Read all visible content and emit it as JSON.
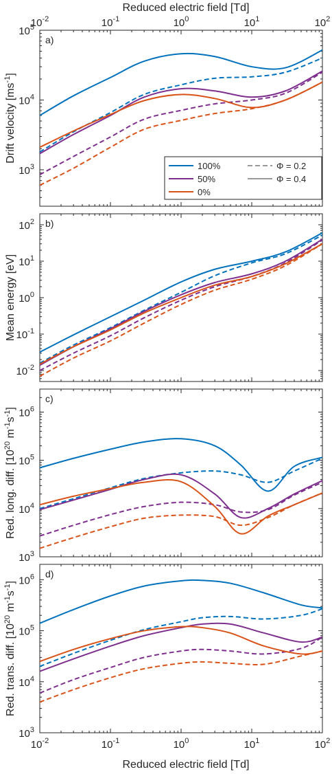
{
  "figure": {
    "top_xlabel": "Reduced electric field [Td]",
    "bottom_xlabel": "Reduced electric field [Td]"
  },
  "legend": {
    "placement": "panel a, lower-right",
    "entries": [
      {
        "label": "100%",
        "color": "#0072BD",
        "style": "solid"
      },
      {
        "label": "50%",
        "color": "#7E2F8E",
        "style": "solid"
      },
      {
        "label": "0%",
        "color": "#D95319",
        "style": "solid"
      },
      {
        "label": "Φ = 0.2",
        "color": "#999999",
        "style": "dashed"
      },
      {
        "label": "Φ = 0.4",
        "color": "#999999",
        "style": "solid"
      }
    ]
  },
  "chart_data": [
    {
      "type": "line",
      "panel": "a)",
      "title": "",
      "xlabel": "Reduced electric field [Td]",
      "ylabel": "Drift velocity [ms-1]",
      "xscale": "log",
      "yscale": "log",
      "xlim": [
        0.01,
        100
      ],
      "ylim": [
        300,
        100000
      ],
      "xticks": [
        "10^-2",
        "10^-1",
        "10^0",
        "10^1",
        "10^2"
      ],
      "yticks": [
        "10^3",
        "10^4",
        "10^5"
      ],
      "x": [
        0.01,
        0.03,
        0.1,
        0.3,
        1,
        3,
        10,
        30,
        100
      ],
      "series": [
        {
          "name": "100%",
          "phi": "0.4",
          "values": [
            6000,
            11500,
            21000,
            36000,
            46000,
            42000,
            30000,
            29000,
            52000
          ]
        },
        {
          "name": "100%",
          "phi": "0.2",
          "values": [
            1800,
            3500,
            6600,
            12000,
            16500,
            20500,
            21500,
            25000,
            40000
          ]
        },
        {
          "name": "50%",
          "phi": "0.4",
          "values": [
            1700,
            3200,
            6000,
            11000,
            14500,
            13500,
            11000,
            13500,
            26000
          ]
        },
        {
          "name": "50%",
          "phi": "0.2",
          "values": [
            850,
            1550,
            2950,
            5300,
            7100,
            8800,
            10000,
            12500,
            25000
          ]
        },
        {
          "name": "0%",
          "phi": "0.4",
          "values": [
            2100,
            3600,
            6200,
            9800,
            12000,
            10500,
            7800,
            10000,
            18000
          ]
        },
        {
          "name": "0%",
          "phi": "0.2",
          "values": [
            600,
            1050,
            2100,
            3800,
            5100,
            6400,
            7500,
            10000,
            18000
          ]
        }
      ]
    },
    {
      "type": "line",
      "panel": "b)",
      "title": "",
      "xlabel": "",
      "ylabel": "Mean energy [eV]",
      "xscale": "log",
      "yscale": "log",
      "xlim": [
        0.01,
        100
      ],
      "ylim": [
        0.005,
        200
      ],
      "xticks": [
        "10^-2",
        "10^-1",
        "10^0",
        "10^1",
        "10^2"
      ],
      "yticks": [
        "10^-2",
        "10^-1",
        "10^0",
        "10^1",
        "10^2"
      ],
      "x": [
        0.01,
        0.03,
        0.1,
        0.3,
        1,
        3,
        10,
        30,
        100
      ],
      "series": [
        {
          "name": "100%",
          "phi": "0.4",
          "values": [
            0.032,
            0.095,
            0.3,
            0.85,
            2.7,
            6,
            10,
            18,
            60
          ]
        },
        {
          "name": "100%",
          "phi": "0.2",
          "values": [
            0.016,
            0.05,
            0.15,
            0.45,
            1.4,
            4,
            9,
            16,
            52
          ]
        },
        {
          "name": "50%",
          "phi": "0.4",
          "values": [
            0.014,
            0.045,
            0.14,
            0.42,
            1.2,
            2.6,
            4.5,
            10,
            40
          ]
        },
        {
          "name": "50%",
          "phi": "0.2",
          "values": [
            0.01,
            0.03,
            0.09,
            0.28,
            0.85,
            2,
            3.8,
            9,
            38
          ]
        },
        {
          "name": "0%",
          "phi": "0.4",
          "values": [
            0.015,
            0.045,
            0.13,
            0.38,
            1.0,
            2.2,
            3.8,
            8.5,
            30
          ]
        },
        {
          "name": "0%",
          "phi": "0.2",
          "values": [
            0.007,
            0.022,
            0.065,
            0.2,
            0.65,
            1.6,
            3.2,
            7.5,
            30
          ]
        }
      ]
    },
    {
      "type": "line",
      "panel": "c)",
      "title": "",
      "xlabel": "",
      "ylabel": "Red. long. diff. [1020 m-1s-1]",
      "xscale": "log",
      "yscale": "log",
      "xlim": [
        0.01,
        100
      ],
      "ylim": [
        1000,
        3000000
      ],
      "xticks": [
        "10^-2",
        "10^-1",
        "10^0",
        "10^1",
        "10^2"
      ],
      "yticks": [
        "10^3",
        "10^4",
        "10^5",
        "10^6"
      ],
      "x": [
        0.01,
        0.03,
        0.1,
        0.3,
        1,
        3,
        7,
        17,
        40,
        100
      ],
      "series": [
        {
          "name": "100%",
          "phi": "0.4",
          "values": [
            70000,
            110000,
            170000,
            240000,
            280000,
            200000,
            80000,
            23000,
            75000,
            115000
          ]
        },
        {
          "name": "100%",
          "phi": "0.2",
          "values": [
            10000,
            16000,
            27000,
            42000,
            55000,
            60000,
            50000,
            35000,
            60000,
            110000
          ]
        },
        {
          "name": "50%",
          "phi": "0.4",
          "values": [
            9500,
            15000,
            25000,
            40000,
            50000,
            20000,
            6500,
            10000,
            20000,
            38000
          ]
        },
        {
          "name": "50%",
          "phi": "0.2",
          "values": [
            2700,
            4500,
            7500,
            11000,
            13500,
            12000,
            8500,
            9500,
            19000,
            35000
          ]
        },
        {
          "name": "0%",
          "phi": "0.4",
          "values": [
            12000,
            18000,
            26000,
            35000,
            36000,
            11000,
            3000,
            7000,
            12000,
            21000
          ]
        },
        {
          "name": "0%",
          "phi": "0.2",
          "values": [
            1500,
            2500,
            4200,
            6300,
            7300,
            6800,
            4500,
            6500,
            12000,
            21000
          ]
        }
      ]
    },
    {
      "type": "line",
      "panel": "d)",
      "title": "",
      "xlabel": "Reduced electric field [Td]",
      "ylabel": "Red. trans. diff. [1020 m-1s-1]",
      "xscale": "log",
      "yscale": "log",
      "xlim": [
        0.01,
        100
      ],
      "ylim": [
        1000,
        2000000
      ],
      "xticks": [
        "10^-2",
        "10^-1",
        "10^0",
        "10^1",
        "10^2"
      ],
      "yticks": [
        "10^3",
        "10^4",
        "10^5",
        "10^6"
      ],
      "x": [
        0.01,
        0.03,
        0.1,
        0.3,
        1,
        2,
        5,
        15,
        50,
        100
      ],
      "series": [
        {
          "name": "100%",
          "phi": "0.4",
          "values": [
            140000,
            260000,
            480000,
            750000,
            950000,
            970000,
            850000,
            550000,
            320000,
            280000
          ]
        },
        {
          "name": "100%",
          "phi": "0.2",
          "values": [
            20000,
            36000,
            65000,
            105000,
            150000,
            180000,
            190000,
            170000,
            200000,
            270000
          ]
        },
        {
          "name": "50%",
          "phi": "0.4",
          "values": [
            16000,
            28000,
            50000,
            80000,
            115000,
            135000,
            135000,
            90000,
            60000,
            75000
          ]
        },
        {
          "name": "50%",
          "phi": "0.2",
          "values": [
            6000,
            11000,
            19000,
            30000,
            40000,
            43000,
            40000,
            35000,
            45000,
            75000
          ]
        },
        {
          "name": "0%",
          "phi": "0.4",
          "values": [
            25000,
            43000,
            70000,
            100000,
            120000,
            115000,
            90000,
            50000,
            35000,
            40000
          ]
        },
        {
          "name": "0%",
          "phi": "0.2",
          "values": [
            4000,
            7000,
            12000,
            18000,
            23000,
            24500,
            23000,
            22000,
            32000,
            40000
          ]
        }
      ]
    }
  ]
}
